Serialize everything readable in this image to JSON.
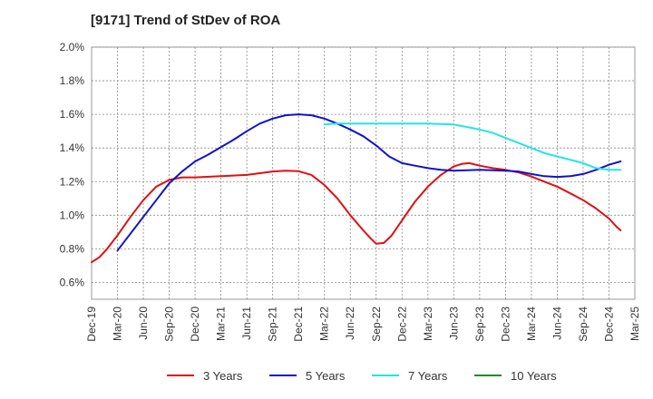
{
  "chart_data": {
    "type": "line",
    "title": "[9171]  Trend of StDev of ROA",
    "xlabel": "",
    "ylabel": "",
    "ylim": [
      0.5,
      2.0
    ],
    "y_ticks": [
      "0.6%",
      "0.8%",
      "1.0%",
      "1.2%",
      "1.4%",
      "1.6%",
      "1.8%",
      "2.0%"
    ],
    "y_tick_values": [
      0.6,
      0.8,
      1.0,
      1.2,
      1.4,
      1.6,
      1.8,
      2.0
    ],
    "x_ticks": [
      "Dec-19",
      "Mar-20",
      "Jun-20",
      "Sep-20",
      "Dec-20",
      "Mar-21",
      "Jun-21",
      "Sep-21",
      "Dec-21",
      "Mar-22",
      "Jun-22",
      "Sep-22",
      "Dec-22",
      "Mar-23",
      "Jun-23",
      "Sep-23",
      "Dec-23",
      "Mar-24",
      "Jun-24",
      "Sep-24",
      "Dec-24",
      "Mar-25"
    ],
    "grid": true,
    "legend_position": "bottom",
    "series": [
      {
        "name": "3 Years",
        "color": "#dd1111",
        "points": [
          [
            0,
            0.72
          ],
          [
            0.3,
            0.75
          ],
          [
            0.6,
            0.8
          ],
          [
            1,
            0.88
          ],
          [
            1.5,
            0.99
          ],
          [
            2,
            1.09
          ],
          [
            2.5,
            1.17
          ],
          [
            3,
            1.21
          ],
          [
            3.5,
            1.225
          ],
          [
            4,
            1.225
          ],
          [
            5,
            1.232
          ],
          [
            6,
            1.24
          ],
          [
            6.5,
            1.25
          ],
          [
            7,
            1.26
          ],
          [
            7.5,
            1.265
          ],
          [
            8,
            1.262
          ],
          [
            8.5,
            1.24
          ],
          [
            9,
            1.18
          ],
          [
            9.5,
            1.1
          ],
          [
            10,
            1.0
          ],
          [
            10.5,
            0.91
          ],
          [
            10.8,
            0.86
          ],
          [
            11,
            0.83
          ],
          [
            11.3,
            0.835
          ],
          [
            11.6,
            0.88
          ],
          [
            12,
            0.97
          ],
          [
            12.5,
            1.08
          ],
          [
            13,
            1.17
          ],
          [
            13.5,
            1.24
          ],
          [
            14,
            1.29
          ],
          [
            14.3,
            1.305
          ],
          [
            14.6,
            1.31
          ],
          [
            15,
            1.295
          ],
          [
            15.5,
            1.28
          ],
          [
            16,
            1.27
          ],
          [
            16.5,
            1.255
          ],
          [
            17,
            1.23
          ],
          [
            17.5,
            1.2
          ],
          [
            18,
            1.17
          ],
          [
            18.5,
            1.13
          ],
          [
            19,
            1.09
          ],
          [
            19.5,
            1.04
          ],
          [
            20,
            0.98
          ],
          [
            20.3,
            0.93
          ],
          [
            20.45,
            0.91
          ]
        ]
      },
      {
        "name": "5 Years",
        "color": "#1111cc",
        "points": [
          [
            1,
            0.79
          ],
          [
            1.5,
            0.89
          ],
          [
            2,
            0.99
          ],
          [
            2.5,
            1.09
          ],
          [
            3,
            1.19
          ],
          [
            3.5,
            1.26
          ],
          [
            4,
            1.32
          ],
          [
            4.5,
            1.36
          ],
          [
            5,
            1.405
          ],
          [
            5.5,
            1.45
          ],
          [
            6,
            1.5
          ],
          [
            6.5,
            1.545
          ],
          [
            7,
            1.575
          ],
          [
            7.5,
            1.595
          ],
          [
            8,
            1.6
          ],
          [
            8.5,
            1.595
          ],
          [
            9,
            1.575
          ],
          [
            9.5,
            1.545
          ],
          [
            10,
            1.51
          ],
          [
            10.5,
            1.47
          ],
          [
            11,
            1.415
          ],
          [
            11.5,
            1.35
          ],
          [
            12,
            1.31
          ],
          [
            12.5,
            1.295
          ],
          [
            13,
            1.28
          ],
          [
            13.5,
            1.27
          ],
          [
            14,
            1.265
          ],
          [
            15,
            1.27
          ],
          [
            16,
            1.265
          ],
          [
            16.5,
            1.26
          ],
          [
            17,
            1.245
          ],
          [
            17.5,
            1.232
          ],
          [
            18,
            1.228
          ],
          [
            18.5,
            1.232
          ],
          [
            19,
            1.245
          ],
          [
            19.5,
            1.27
          ],
          [
            20,
            1.3
          ],
          [
            20.45,
            1.32
          ]
        ]
      },
      {
        "name": "7 Years",
        "color": "#22e5e5",
        "points": [
          [
            9,
            1.54
          ],
          [
            9.5,
            1.545
          ],
          [
            10,
            1.545
          ],
          [
            11,
            1.545
          ],
          [
            12,
            1.545
          ],
          [
            13,
            1.545
          ],
          [
            14,
            1.54
          ],
          [
            14.5,
            1.525
          ],
          [
            15,
            1.51
          ],
          [
            15.5,
            1.49
          ],
          [
            16,
            1.46
          ],
          [
            16.5,
            1.43
          ],
          [
            17,
            1.4
          ],
          [
            17.5,
            1.37
          ],
          [
            18,
            1.35
          ],
          [
            18.5,
            1.33
          ],
          [
            19,
            1.31
          ],
          [
            19.5,
            1.28
          ],
          [
            20,
            1.27
          ],
          [
            20.45,
            1.27
          ]
        ]
      },
      {
        "name": "10 Years",
        "color": "#228b22",
        "points": []
      }
    ]
  }
}
